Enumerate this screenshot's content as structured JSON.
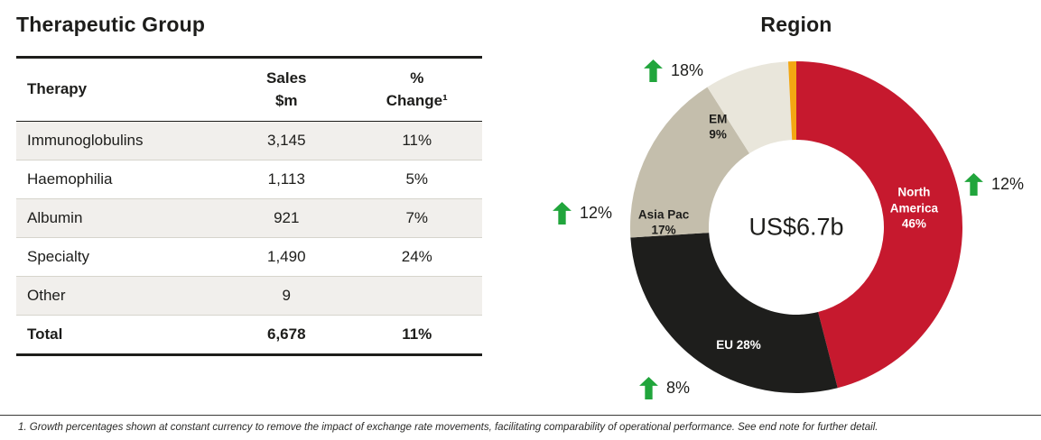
{
  "left": {
    "title": "Therapeutic Group",
    "table": {
      "headers": {
        "therapy": "Therapy",
        "sales_l1": "Sales",
        "sales_l2": "$m",
        "change_l1": "%",
        "change_l2": "Change¹"
      },
      "rows": [
        {
          "therapy": "Immunoglobulins",
          "sales": "3,145",
          "change": "11%"
        },
        {
          "therapy": "Haemophilia",
          "sales": "1,113",
          "change": "5%"
        },
        {
          "therapy": "Albumin",
          "sales": "921",
          "change": "7%"
        },
        {
          "therapy": "Specialty",
          "sales": "1,490",
          "change": "24%"
        },
        {
          "therapy": "Other",
          "sales": "9",
          "change": ""
        },
        {
          "therapy": "Total",
          "sales": "6,678",
          "change": "11%"
        }
      ]
    }
  },
  "right": {
    "title": "Region"
  },
  "chart_data": {
    "type": "pie",
    "donut": true,
    "title": "Region",
    "center_label": "US$6.7b",
    "start_angle": "top",
    "direction": "clockwise",
    "segments": [
      {
        "label": "North America",
        "value": 46,
        "display_lines": [
          "North",
          "America",
          "46%"
        ],
        "color": "#c6192e",
        "text_color": "#ffffff",
        "growth": "12%"
      },
      {
        "label": "EU",
        "value": 28,
        "display_lines": [
          "EU  28%"
        ],
        "color": "#1e1e1c",
        "text_color": "#ffffff",
        "growth": "8%"
      },
      {
        "label": "Asia Pac",
        "value": 17,
        "display_lines": [
          "Asia Pac",
          "17%"
        ],
        "color": "#c4beac",
        "text_color": "#1d1d1b",
        "growth": "12%"
      },
      {
        "label": "EM",
        "value": 9,
        "display_lines": [
          "EM",
          "9%"
        ],
        "color": "#e9e6db",
        "text_color": "#1d1d1b",
        "growth": "18%"
      }
    ],
    "accent_sliver_color": "#f3a712",
    "growth_arrow_color": "#21a53c"
  },
  "footnote": "1. Growth percentages shown at constant currency to remove the impact of exchange rate movements, facilitating comparability of operational performance. See end note for further detail."
}
